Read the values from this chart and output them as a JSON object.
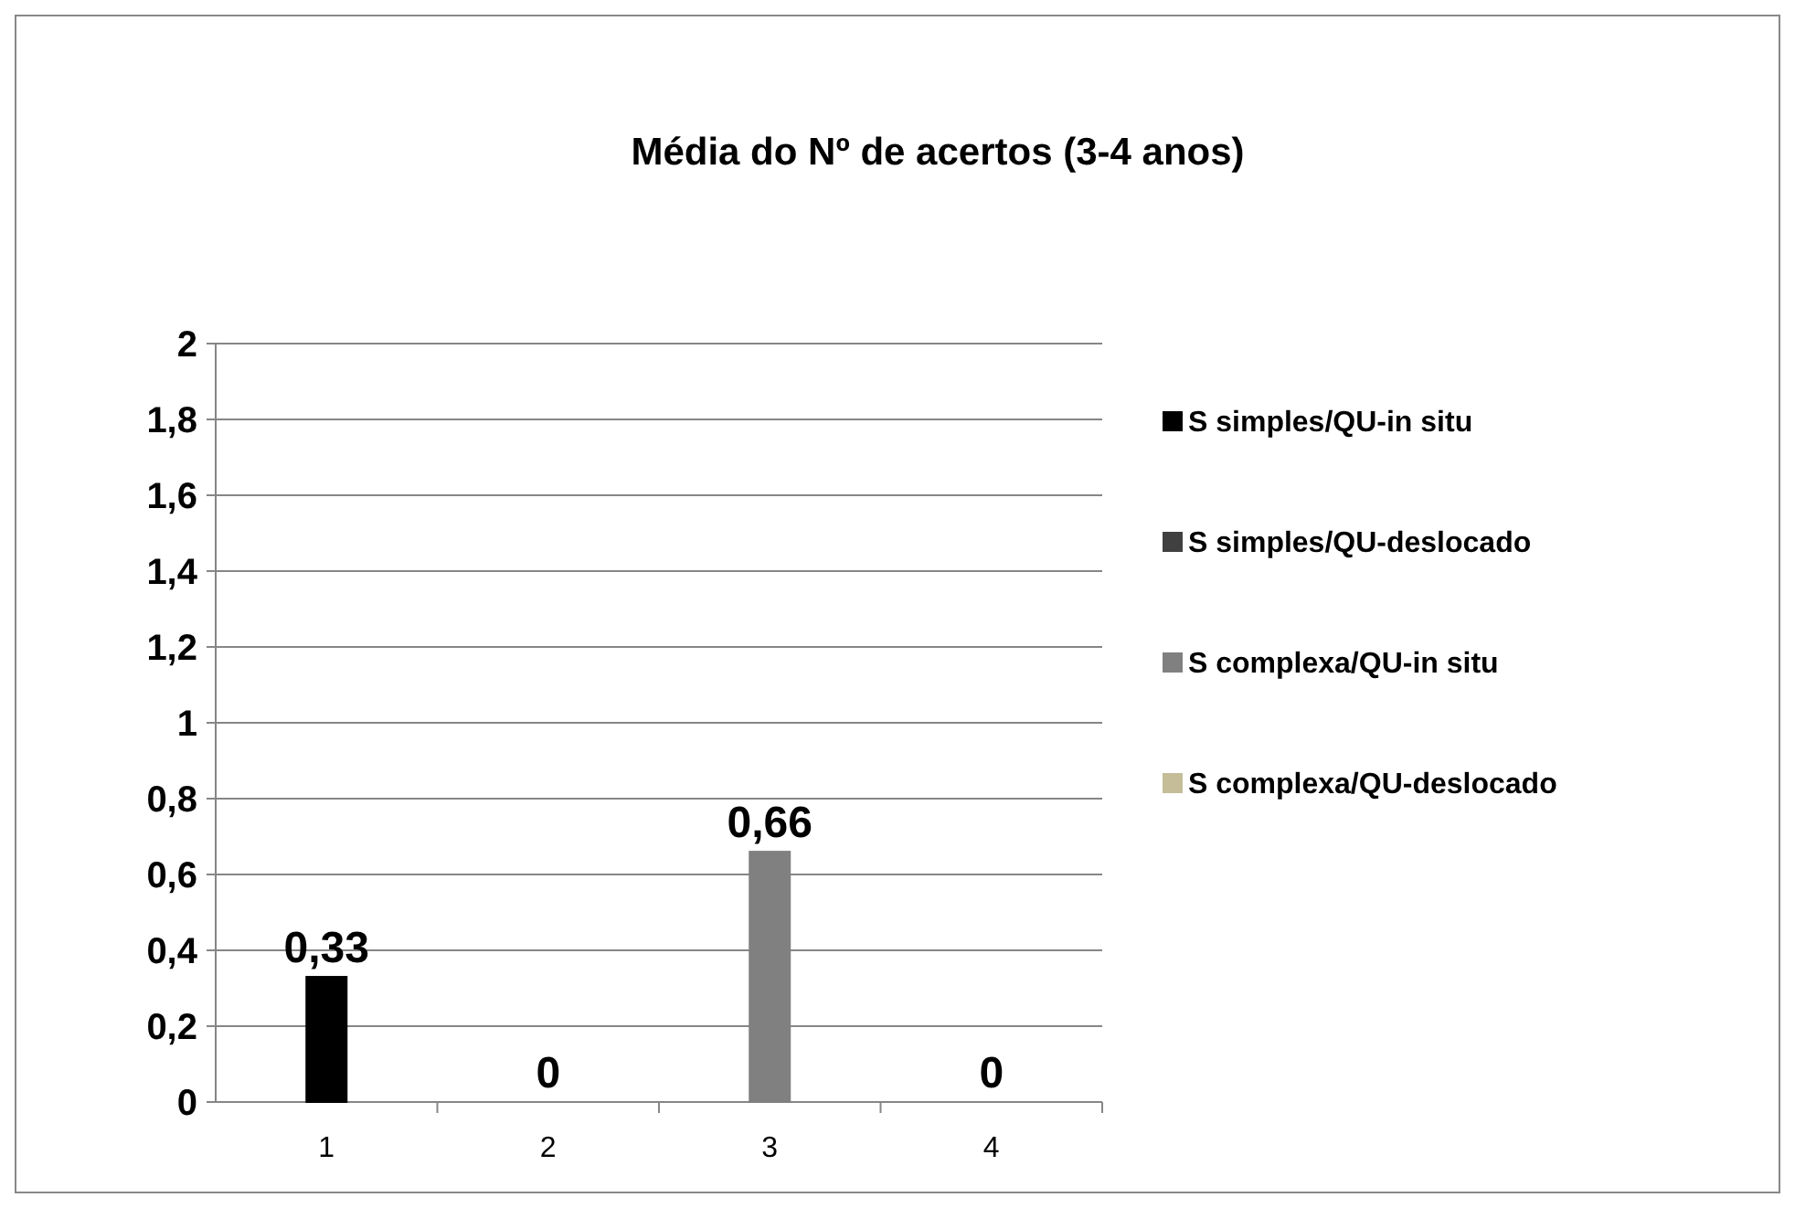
{
  "chart_data": {
    "type": "bar",
    "title": "Média do Nº de acertos (3-4 anos)",
    "categories": [
      "1",
      "2",
      "3",
      "4"
    ],
    "series": [
      {
        "name": "S simples/QU-in situ",
        "color": "#000000",
        "values": [
          0.33,
          null,
          null,
          null
        ],
        "value_labels": [
          "0,33",
          null,
          null,
          null
        ]
      },
      {
        "name": "S simples/QU-deslocado",
        "color": "#404040",
        "values": [
          null,
          0,
          null,
          null
        ],
        "value_labels": [
          null,
          "0",
          null,
          null
        ]
      },
      {
        "name": "S complexa/QU-in situ",
        "color": "#808080",
        "values": [
          null,
          null,
          0.66,
          null
        ],
        "value_labels": [
          null,
          null,
          "0,66",
          null
        ]
      },
      {
        "name": "S complexa/QU-deslocado",
        "color": "#c4bd97",
        "values": [
          null,
          null,
          null,
          0
        ],
        "value_labels": [
          null,
          null,
          null,
          "0"
        ]
      }
    ],
    "ylim": [
      0,
      2
    ],
    "yticks": [
      0,
      {
        "value": 0.2,
        "label": "0,2"
      },
      {
        "value": 0.4,
        "label": "0,4"
      },
      {
        "value": 0.6,
        "label": "0,6"
      },
      {
        "value": 0.8,
        "label": "0,8"
      },
      1,
      {
        "value": 1.2,
        "label": "1,2"
      },
      {
        "value": 1.4,
        "label": "1,4"
      },
      {
        "value": 1.6,
        "label": "1,6"
      },
      {
        "value": 1.8,
        "label": "1,8"
      },
      2
    ],
    "grid": "y",
    "legend": "right"
  }
}
